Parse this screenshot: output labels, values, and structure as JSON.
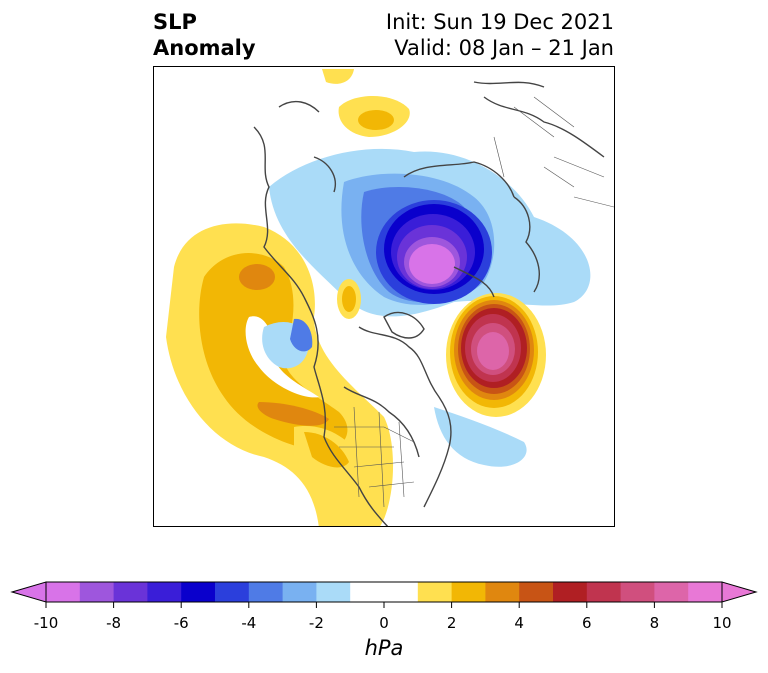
{
  "title": {
    "variable": "SLP",
    "variable_line2": "Anomaly",
    "init": "Init: Sun 19 Dec 2021",
    "valid": "Valid: 08 Jan – 21 Jan"
  },
  "colorbar": {
    "unit": "hPa",
    "ticks": [
      "-10",
      "-8",
      "-6",
      "-4",
      "-2",
      "0",
      "2",
      "4",
      "6",
      "8",
      "10"
    ],
    "levels": [
      -10,
      10
    ],
    "colors": [
      "#d873e8",
      "#9e56dd",
      "#6a33d8",
      "#3a1ed8",
      "#0a00cc",
      "#2b3fdc",
      "#4f7be6",
      "#79b1f1",
      "#aadbf8",
      "#ffffff",
      "#ffffff",
      "#ffe050",
      "#f2b705",
      "#e0870f",
      "#c85415",
      "#b01f23",
      "#c0344f",
      "#d04f7e",
      "#dd65a9",
      "#e878d6"
    ]
  }
}
